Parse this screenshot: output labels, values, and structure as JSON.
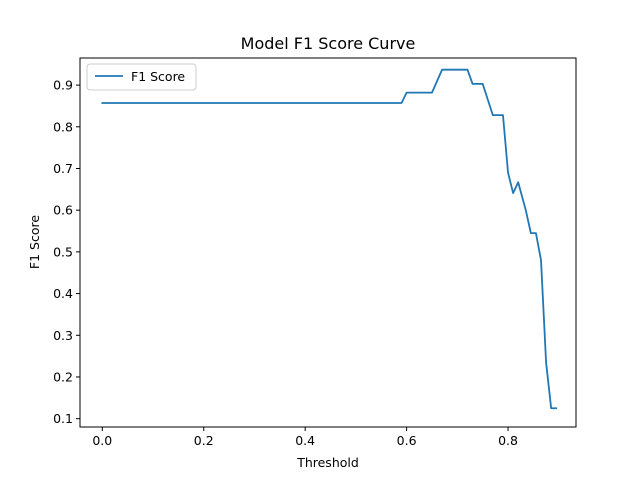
{
  "chart_data": {
    "type": "line",
    "title": "Model F1 Score Curve",
    "xlabel": "Threshold",
    "ylabel": "F1 Score",
    "xlim": [
      -0.044,
      0.934
    ],
    "ylim": [
      0.08,
      0.965
    ],
    "xticks": [
      0.0,
      0.2,
      0.4,
      0.6,
      0.8
    ],
    "xtick_labels": [
      "0.0",
      "0.2",
      "0.4",
      "0.6",
      "0.8"
    ],
    "yticks": [
      0.1,
      0.2,
      0.3,
      0.4,
      0.5,
      0.6,
      0.7,
      0.8,
      0.9
    ],
    "ytick_labels": [
      "0.1",
      "0.2",
      "0.3",
      "0.4",
      "0.5",
      "0.6",
      "0.7",
      "0.8",
      "0.9"
    ],
    "grid": false,
    "legend": "upper-left",
    "series": [
      {
        "name": "F1 Score",
        "color": "#1f77b4",
        "x": [
          0.0,
          0.59,
          0.6,
          0.65,
          0.67,
          0.72,
          0.73,
          0.75,
          0.77,
          0.79,
          0.8,
          0.81,
          0.82,
          0.835,
          0.845,
          0.855,
          0.865,
          0.875,
          0.885,
          0.895
        ],
        "y": [
          0.857,
          0.857,
          0.882,
          0.882,
          0.937,
          0.937,
          0.903,
          0.903,
          0.828,
          0.828,
          0.69,
          0.641,
          0.667,
          0.6,
          0.545,
          0.545,
          0.48,
          0.235,
          0.125,
          0.125
        ]
      }
    ]
  }
}
